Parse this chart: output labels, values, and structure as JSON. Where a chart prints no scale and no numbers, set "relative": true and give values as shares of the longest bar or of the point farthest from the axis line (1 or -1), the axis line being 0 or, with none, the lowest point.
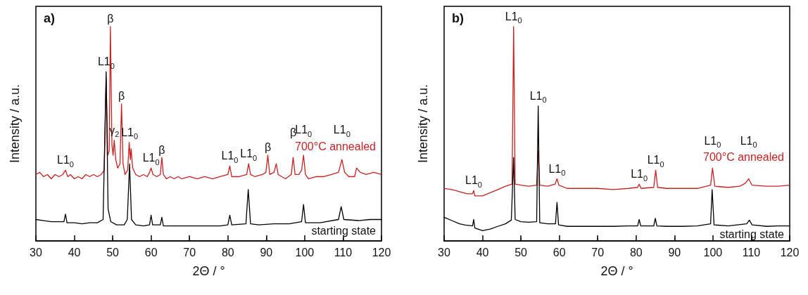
{
  "chart_data": [
    {
      "type": "line",
      "title": "a)",
      "xlabel": "2Θ / °",
      "ylabel": "Intensity / a.u.",
      "relative": true,
      "xlim": [
        30,
        120
      ],
      "xticks": [
        30,
        40,
        50,
        60,
        70,
        80,
        90,
        100,
        110,
        120
      ],
      "tick_labels": "x",
      "grid": false,
      "legend": false,
      "marker": "none",
      "line_style": "solid",
      "series": [
        {
          "name": "700°C annealed",
          "color": "#cc1f1f",
          "x": [
            30,
            31,
            32,
            33,
            34,
            35,
            36,
            37,
            37.7,
            38.3,
            39,
            40,
            41,
            42,
            43,
            44,
            45,
            46,
            47,
            47.8,
            48.3,
            48.7,
            49.1,
            49.4,
            49.8,
            50.1,
            50.4,
            50.8,
            51.3,
            51.9,
            52.3,
            52.7,
            53.2,
            53.9,
            54.3,
            54.6,
            54.8,
            55.2,
            56,
            57,
            58,
            59,
            59.6,
            60,
            60.5,
            61.5,
            62.4,
            62.8,
            63.2,
            64,
            65,
            66,
            67,
            68,
            70,
            72,
            74,
            76,
            78,
            80,
            80.5,
            81,
            83,
            84.9,
            85.4,
            85.9,
            87,
            89,
            89.9,
            90.4,
            90.9,
            92,
            92.6,
            93.1,
            94,
            95,
            96.5,
            97,
            97.5,
            98.5,
            99.2,
            99.7,
            100.2,
            101,
            103,
            105,
            107,
            108.8,
            109.7,
            110.4,
            111.5,
            113,
            113.5,
            114.5,
            116,
            118,
            120
          ],
          "values": [
            0.31,
            0.32,
            0.3,
            0.31,
            0.29,
            0.31,
            0.3,
            0.31,
            0.33,
            0.3,
            0.31,
            0.29,
            0.3,
            0.29,
            0.31,
            0.3,
            0.31,
            0.3,
            0.31,
            0.33,
            0.76,
            0.4,
            0.42,
            1,
            0.45,
            0.4,
            0.47,
            0.38,
            0.34,
            0.36,
            0.64,
            0.36,
            0.31,
            0.33,
            0.46,
            0.38,
            0.43,
            0.34,
            0.31,
            0.3,
            0.31,
            0.3,
            0.32,
            0.34,
            0.31,
            0.3,
            0.31,
            0.39,
            0.31,
            0.29,
            0.3,
            0.29,
            0.3,
            0.29,
            0.3,
            0.29,
            0.3,
            0.29,
            0.3,
            0.31,
            0.35,
            0.3,
            0.3,
            0.31,
            0.36,
            0.31,
            0.3,
            0.31,
            0.32,
            0.4,
            0.31,
            0.32,
            0.36,
            0.31,
            0.3,
            0.29,
            0.31,
            0.39,
            0.31,
            0.31,
            0.33,
            0.4,
            0.31,
            0.29,
            0.3,
            0.3,
            0.31,
            0.32,
            0.38,
            0.32,
            0.3,
            0.3,
            0.34,
            0.32,
            0.31,
            0.32,
            0.31
          ]
        },
        {
          "name": "starting state",
          "color": "#000000",
          "x": [
            30,
            32,
            34,
            36,
            37.3,
            37.7,
            38.1,
            40,
            42,
            44,
            46,
            47.5,
            48.3,
            48.8,
            49.5,
            51,
            53,
            53.8,
            54.4,
            54.9,
            56,
            58,
            59.6,
            60,
            60.4,
            62.4,
            62.8,
            63.2,
            66,
            70,
            74,
            78,
            80,
            80.5,
            81,
            84.7,
            85.3,
            85.9,
            88,
            92,
            96,
            99.2,
            99.7,
            100.2,
            104,
            108.8,
            109.5,
            110.2,
            114,
            117,
            120
          ],
          "values": [
            0.1,
            0.095,
            0.09,
            0.09,
            0.09,
            0.125,
            0.085,
            0.085,
            0.08,
            0.085,
            0.085,
            0.1,
            0.79,
            0.15,
            0.09,
            0.075,
            0.075,
            0.1,
            0.36,
            0.1,
            0.075,
            0.07,
            0.075,
            0.12,
            0.075,
            0.075,
            0.11,
            0.07,
            0.07,
            0.07,
            0.07,
            0.07,
            0.075,
            0.12,
            0.075,
            0.08,
            0.24,
            0.08,
            0.075,
            0.08,
            0.08,
            0.09,
            0.17,
            0.085,
            0.085,
            0.1,
            0.16,
            0.1,
            0.095,
            0.1,
            0.1
          ]
        }
      ],
      "annotations": [
        {
          "text": "L1$_{0}$",
          "x": 37.7,
          "y": 0.33
        },
        {
          "text": "L1$_{0}$",
          "x": 48.3,
          "y": 0.79
        },
        {
          "text": "β",
          "x": 49.4,
          "y": 1
        },
        {
          "text": "γ$_{2}$",
          "x": 50.4,
          "y": 0.47
        },
        {
          "text": "β",
          "x": 52.3,
          "y": 0.64
        },
        {
          "text": "L1$_{0}$",
          "x": 54.4,
          "y": 0.46
        },
        {
          "text": "L1$_{0}$",
          "x": 60,
          "y": 0.34
        },
        {
          "text": "β",
          "x": 62.8,
          "y": 0.39
        },
        {
          "text": "L1$_{0}$",
          "x": 80.5,
          "y": 0.35
        },
        {
          "text": "L1$_{0}$",
          "x": 85.4,
          "y": 0.36
        },
        {
          "text": "β",
          "x": 90.4,
          "y": 0.4
        },
        {
          "text": "β",
          "x": 97,
          "y": 0.39
        },
        {
          "text": "L1$_{0}$",
          "x": 99.7,
          "y": 0.4
        },
        {
          "text": "L1$_{0}$",
          "x": 109.7,
          "y": 0.38
        }
      ]
    },
    {
      "type": "line",
      "title": "b)",
      "xlabel": "2Θ / °",
      "ylabel": "Intensity / a.u.",
      "relative": true,
      "xlim": [
        30,
        120
      ],
      "xticks": [
        30,
        40,
        50,
        60,
        70,
        80,
        90,
        100,
        110,
        120
      ],
      "tick_labels": "x",
      "grid": false,
      "legend": false,
      "marker": "none",
      "line_style": "solid",
      "series": [
        {
          "name": "700°C annealed",
          "color": "#cc1f1f",
          "x": [
            30,
            32,
            34,
            36,
            37.4,
            37.7,
            38,
            40,
            42,
            44,
            46,
            47.7,
            48.1,
            48.5,
            50,
            52,
            54.1,
            54.5,
            54.9,
            57,
            58.9,
            59.4,
            59.9,
            62,
            66,
            70,
            74,
            78,
            80.4,
            80.8,
            81.3,
            84.6,
            85.1,
            85.6,
            88,
            92,
            96,
            99.4,
            99.9,
            100.5,
            104,
            107,
            108.5,
            109.3,
            110.2,
            114,
            117,
            120
          ],
          "values": [
            0.245,
            0.24,
            0.23,
            0.22,
            0.22,
            0.235,
            0.21,
            0.21,
            0.225,
            0.24,
            0.255,
            0.265,
            1,
            0.265,
            0.26,
            0.255,
            0.26,
            0.42,
            0.26,
            0.255,
            0.265,
            0.29,
            0.26,
            0.245,
            0.245,
            0.245,
            0.24,
            0.245,
            0.25,
            0.265,
            0.245,
            0.25,
            0.33,
            0.25,
            0.245,
            0.245,
            0.245,
            0.26,
            0.34,
            0.255,
            0.25,
            0.255,
            0.27,
            0.29,
            0.26,
            0.255,
            0.255,
            0.26
          ]
        },
        {
          "name": "starting state",
          "color": "#000000",
          "x": [
            30,
            32,
            34,
            35.5,
            37.4,
            37.7,
            38,
            40,
            42,
            44,
            46,
            47.5,
            48.1,
            48.5,
            50,
            52,
            54.1,
            54.5,
            54.9,
            57,
            59,
            59.4,
            59.8,
            62,
            66,
            70,
            74,
            78,
            80.4,
            80.8,
            81.2,
            84.6,
            85,
            85.4,
            88,
            92,
            96,
            99.4,
            99.8,
            100.3,
            104,
            108.8,
            109.5,
            110.2,
            114,
            117,
            120
          ],
          "values": [
            0.11,
            0.095,
            0.08,
            0.074,
            0.07,
            0.1,
            0.06,
            0.048,
            0.055,
            0.068,
            0.08,
            0.097,
            0.39,
            0.1,
            0.09,
            0.087,
            0.09,
            0.63,
            0.085,
            0.08,
            0.08,
            0.18,
            0.075,
            0.068,
            0.068,
            0.068,
            0.068,
            0.07,
            0.07,
            0.1,
            0.07,
            0.07,
            0.105,
            0.07,
            0.068,
            0.068,
            0.07,
            0.08,
            0.24,
            0.075,
            0.07,
            0.08,
            0.097,
            0.075,
            0.068,
            0.07,
            0.07
          ]
        }
      ],
      "annotations": [
        {
          "text": "L1$_{0}$",
          "x": 37.7,
          "y": 0.235
        },
        {
          "text": "L1$_{0}$",
          "x": 48.1,
          "y": 1
        },
        {
          "text": "L1$_{0}$",
          "x": 54.5,
          "y": 0.63
        },
        {
          "text": "L1$_{0}$",
          "x": 59.4,
          "y": 0.29
        },
        {
          "text": "L1$_{0}$",
          "x": 80.8,
          "y": 0.265
        },
        {
          "text": "L1$_{0}$",
          "x": 85.1,
          "y": 0.33
        },
        {
          "text": "L1$_{0}$",
          "x": 99.9,
          "y": 0.34
        },
        {
          "text": "L1$_{0}$",
          "x": 109.3,
          "y": 0.29
        }
      ]
    }
  ]
}
